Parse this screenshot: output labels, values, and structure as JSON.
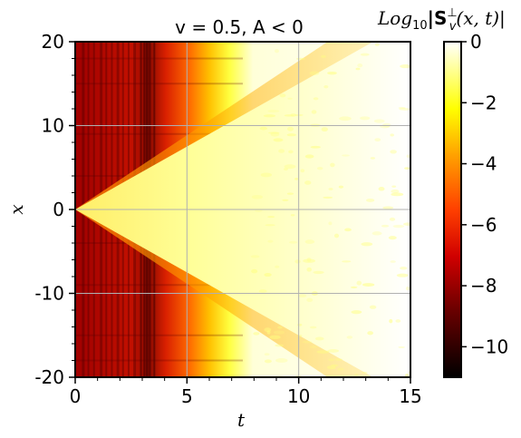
{
  "chart_data": {
    "type": "heatmap",
    "title": "v = 0.5, A < 0",
    "xlabel": "t",
    "ylabel": "x",
    "xlim": [
      0,
      15
    ],
    "ylim": [
      -20,
      20
    ],
    "x_ticks": [
      0,
      5,
      10,
      15
    ],
    "x_tick_labels": [
      "0",
      "5",
      "10",
      "15"
    ],
    "y_ticks": [
      20,
      10,
      0,
      -10,
      -20
    ],
    "y_tick_labels": [
      "20",
      "10",
      "0",
      "-10",
      "-20"
    ],
    "grid": true,
    "colorbar": {
      "label_prefix": "Log",
      "label_sub": "10",
      "label_rest": "|S",
      "label_sup": "⊥",
      "label_subv": "v",
      "label_args": "(x, t)|",
      "range": [
        -11,
        0
      ],
      "ticks": [
        0,
        -2,
        -4,
        -6,
        -8,
        -10
      ],
      "tick_labels": [
        "0",
        "−2",
        "−4",
        "−6",
        "−8",
        "−10"
      ],
      "colormap": "hot",
      "colors": [
        "#000000",
        "#8b0000",
        "#ff0000",
        "#ff8c00",
        "#ffff00",
        "#ffffff"
      ]
    },
    "features": {
      "wedge_apex_t": 0,
      "wedge_half_width_at_t5": 7.5,
      "red_region_until_t": 3,
      "orange_transition_t": [
        4,
        7.5
      ],
      "saturated_after_t": 8
    }
  }
}
